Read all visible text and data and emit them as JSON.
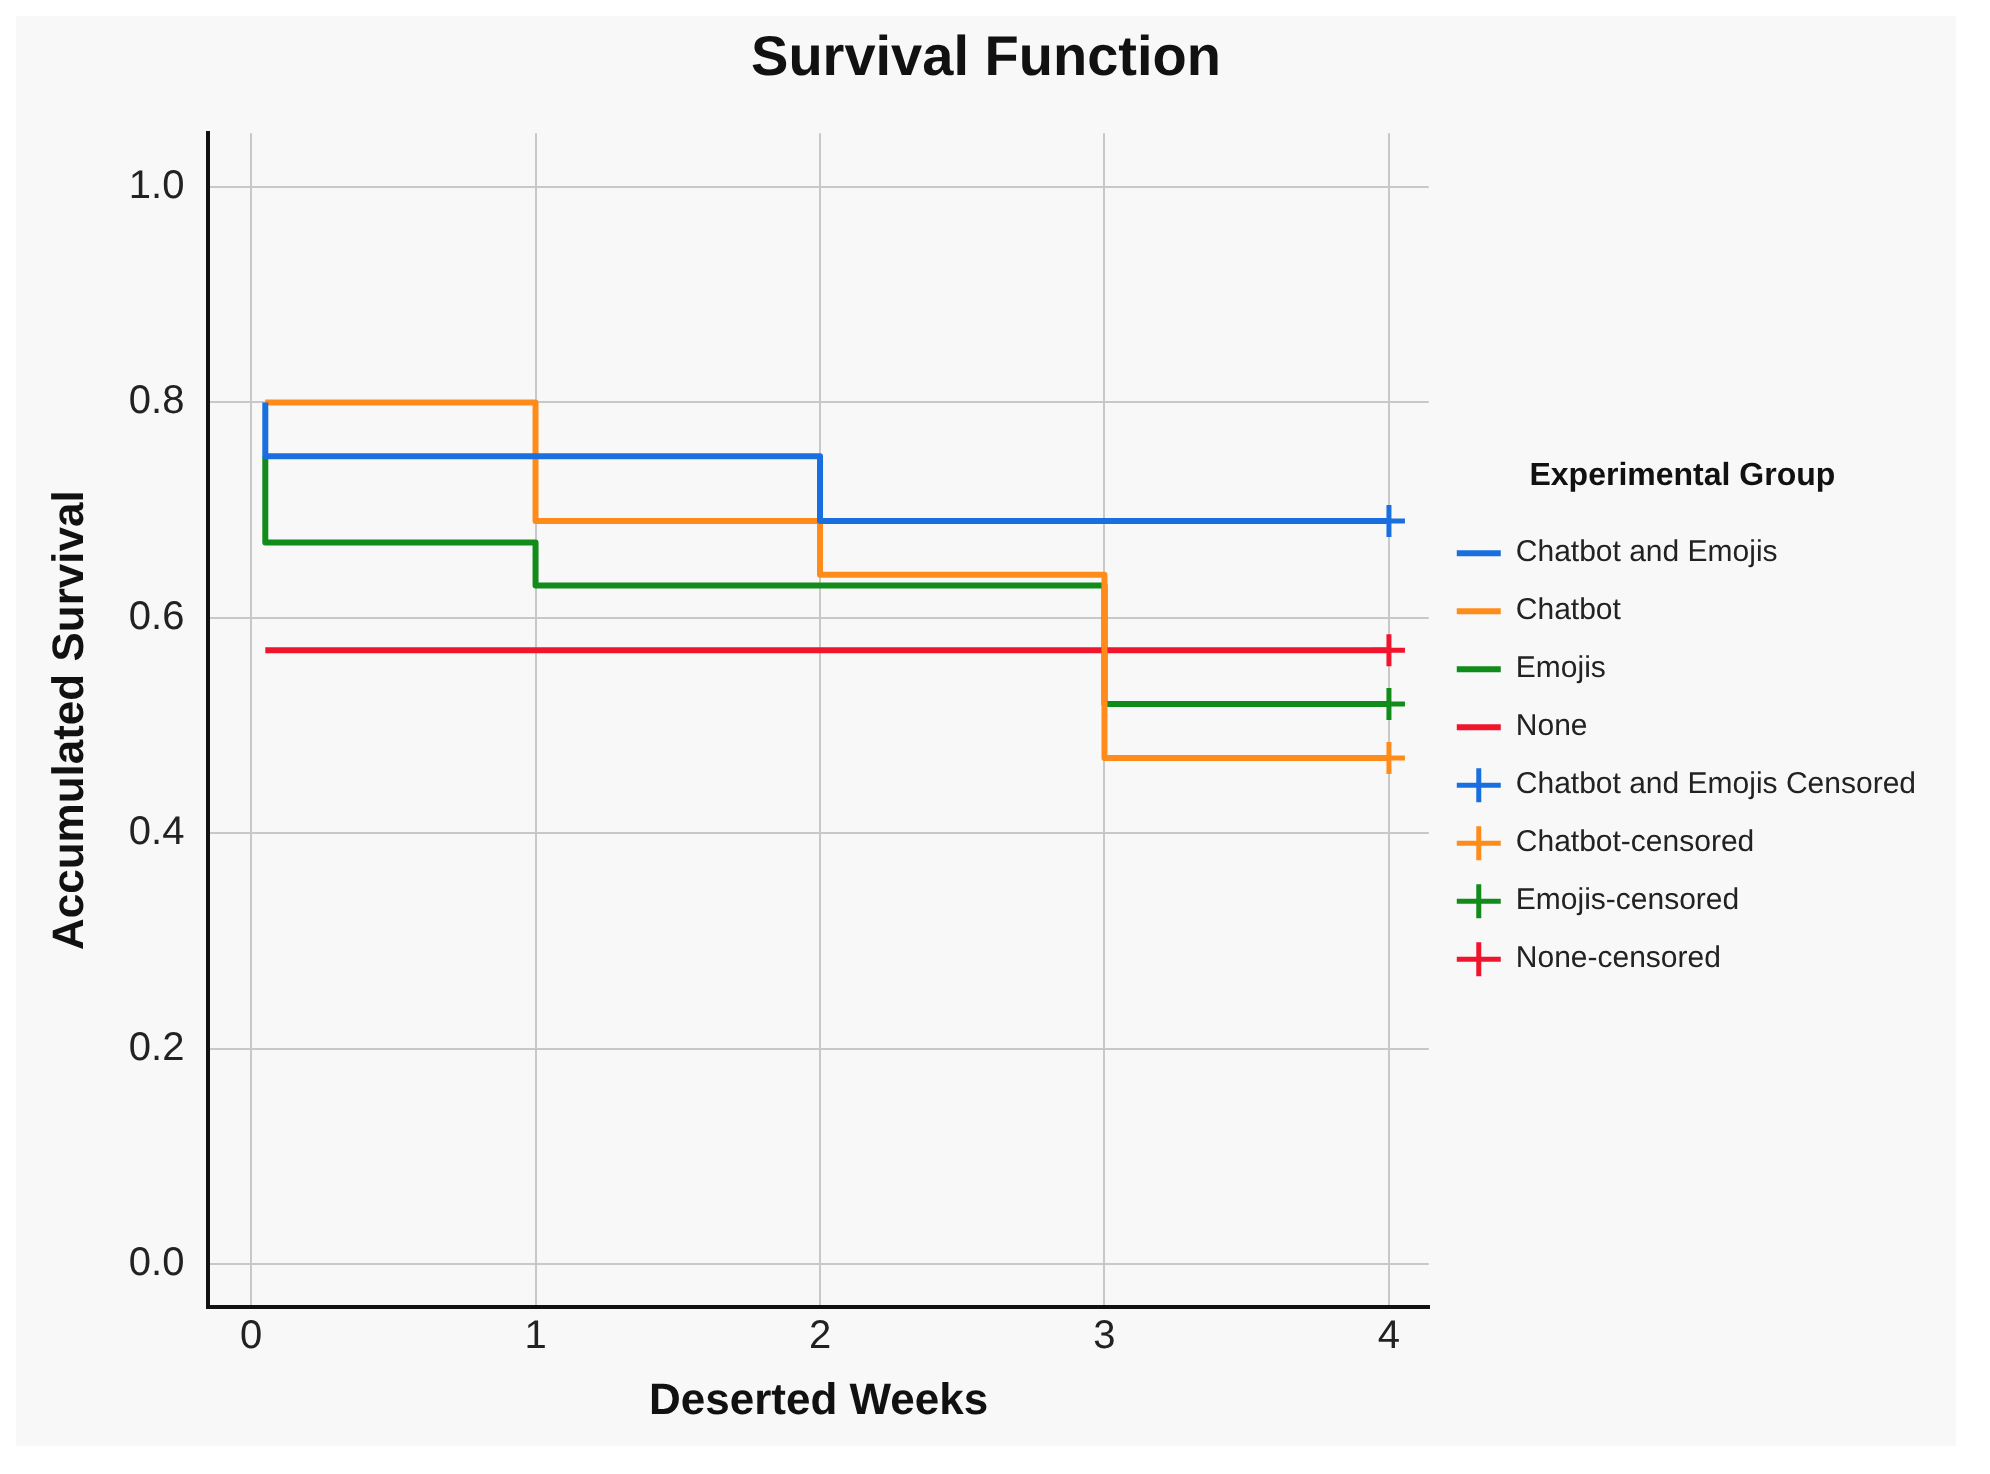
{
  "chart_data": {
    "type": "step",
    "title": "Survival Function",
    "xlabel": "Deserted Weeks",
    "ylabel": "Accumulated Survival",
    "legend_title": "Experimental Group",
    "legend": "right",
    "grid": true,
    "line_style": "solid",
    "xlim": [
      -0.15,
      4.14
    ],
    "xticks": [
      0,
      1,
      2,
      3,
      4
    ],
    "ylim": [
      -0.04,
      1.05
    ],
    "yticks": [
      {
        "value": 0,
        "label": "0.0"
      },
      {
        "value": 0.2,
        "label": "0.2"
      },
      {
        "value": 0.4,
        "label": "0.4"
      },
      {
        "value": 0.6,
        "label": "0.6"
      },
      {
        "value": 0.8,
        "label": "0.8"
      },
      {
        "value": 1,
        "label": "1.0"
      }
    ],
    "series": [
      {
        "name": "Chatbot and Emojis",
        "color": "#1a6fe0",
        "x": [
          0.05,
          0.05,
          2,
          4
        ],
        "values": [
          0.8,
          0.75,
          0.69,
          0.69
        ]
      },
      {
        "name": "Chatbot",
        "color": "#ff8c1a",
        "x": [
          0.05,
          1,
          2,
          3,
          4
        ],
        "values": [
          0.8,
          0.69,
          0.64,
          0.47,
          0.47
        ]
      },
      {
        "name": "Emojis",
        "color": "#118c1a",
        "x": [
          0.05,
          0.05,
          1,
          3,
          4
        ],
        "values": [
          0.75,
          0.67,
          0.63,
          0.52,
          0.52
        ]
      },
      {
        "name": "None",
        "color": "#f0142d",
        "x": [
          0.05,
          4
        ],
        "values": [
          0.57,
          0.57
        ]
      },
      {
        "name": "Chatbot and Emojis Censored",
        "type": "scatter",
        "marker": "cross",
        "color": "#1a6fe0",
        "x": [
          4
        ],
        "values": [
          0.69
        ]
      },
      {
        "name": "Chatbot-censored",
        "type": "scatter",
        "marker": "cross",
        "color": "#ff8c1a",
        "x": [
          4
        ],
        "values": [
          0.47
        ]
      },
      {
        "name": "Emojis-censored",
        "type": "scatter",
        "marker": "cross",
        "color": "#118c1a",
        "x": [
          4
        ],
        "values": [
          0.52
        ]
      },
      {
        "name": "None-censored",
        "type": "scatter",
        "marker": "cross",
        "color": "#f0142d",
        "x": [
          4
        ],
        "values": [
          0.57
        ]
      }
    ]
  }
}
